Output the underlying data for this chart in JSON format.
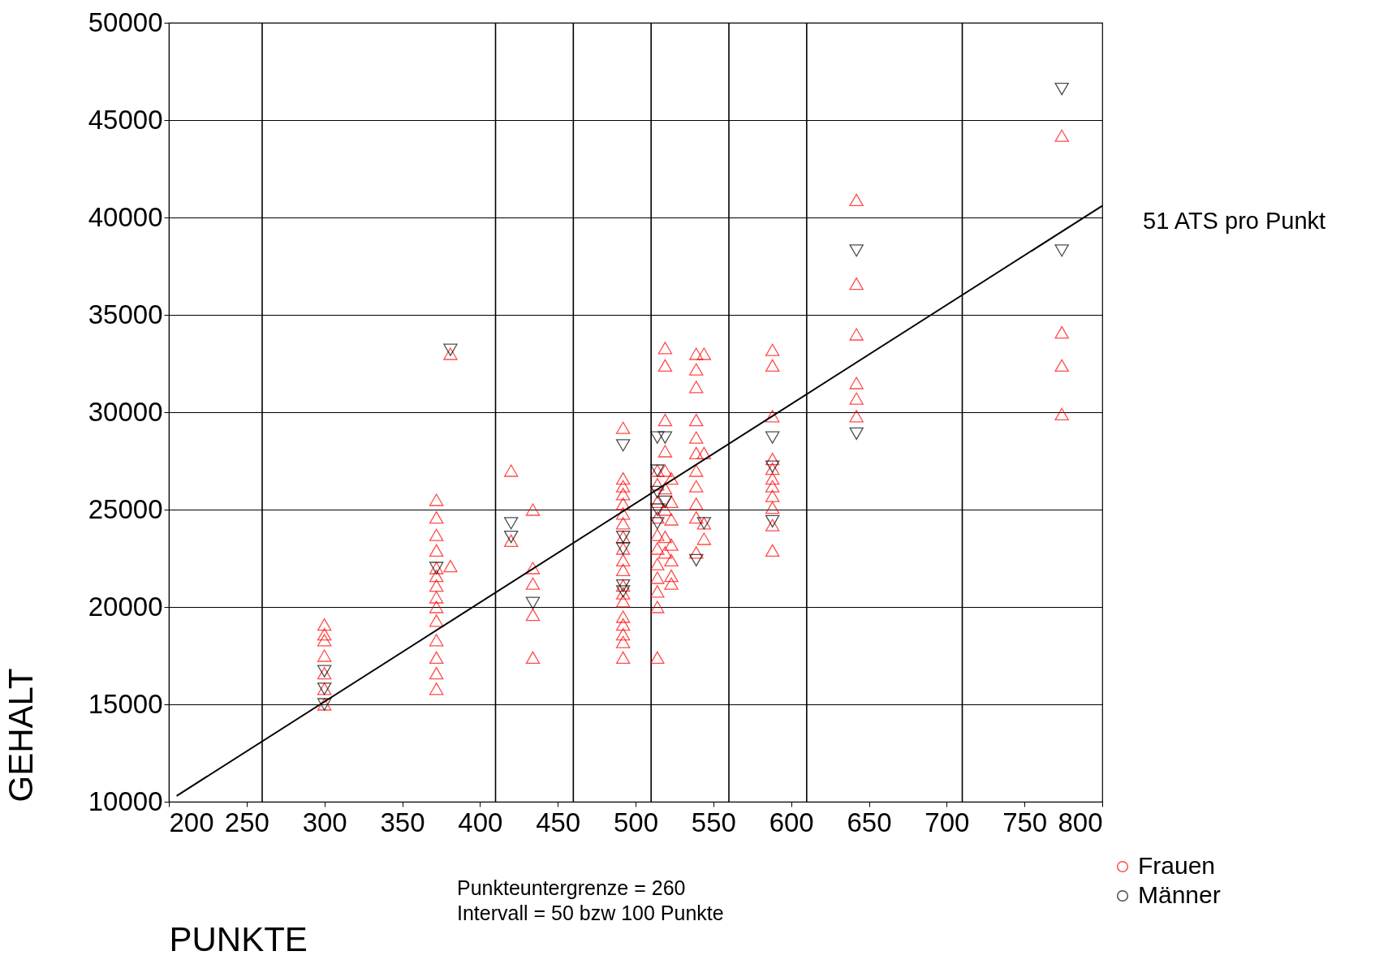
{
  "chart_data": {
    "type": "scatter",
    "xlabel": "PUNKTE",
    "ylabel": "GEHALT",
    "xlim": [
      200,
      800
    ],
    "xticks": [
      200,
      250,
      300,
      350,
      400,
      450,
      500,
      550,
      600,
      650,
      700,
      750,
      800
    ],
    "ylim": [
      10000,
      50000
    ],
    "yticks": [
      10000,
      15000,
      20000,
      25000,
      30000,
      35000,
      40000,
      45000,
      50000
    ],
    "grid": "y",
    "legend": "bottom right",
    "series": [
      {
        "name": "Frauen",
        "color": "#ff0000",
        "marker": "triangle",
        "x": [
          300,
          300,
          300,
          300,
          300,
          300,
          300,
          372,
          372,
          372,
          372,
          372,
          372,
          372,
          372,
          372,
          372,
          372,
          372,
          372,
          372,
          381,
          381,
          420,
          420,
          434,
          434,
          434,
          434,
          434,
          492,
          492,
          492,
          492,
          492,
          492,
          492,
          492,
          492,
          492,
          492,
          492,
          492,
          492,
          492,
          492,
          492,
          492,
          492,
          514,
          514,
          514,
          514,
          514,
          514,
          514,
          514,
          514,
          514,
          514,
          519,
          519,
          519,
          519,
          519,
          519,
          519,
          519,
          519,
          523,
          523,
          523,
          523,
          523,
          523,
          523,
          539,
          539,
          539,
          539,
          539,
          539,
          539,
          539,
          539,
          539,
          539,
          544,
          544,
          544,
          544,
          588,
          588,
          588,
          588,
          588,
          588,
          588,
          588,
          588,
          588,
          588,
          642,
          642,
          642,
          642,
          642,
          642,
          774,
          774,
          774,
          774
        ],
        "values": [
          19100,
          18600,
          18300,
          17500,
          16600,
          15800,
          15000,
          25500,
          24600,
          23700,
          22900,
          22000,
          21600,
          21100,
          20500,
          20000,
          19300,
          18300,
          17400,
          16600,
          15800,
          33000,
          22100,
          27000,
          23400,
          25000,
          22000,
          21200,
          19600,
          17400,
          29200,
          26600,
          26200,
          25800,
          25300,
          24800,
          24300,
          23600,
          23000,
          22400,
          21900,
          21100,
          20700,
          20300,
          19500,
          19100,
          18600,
          18200,
          17400,
          27000,
          26300,
          25400,
          24600,
          23700,
          23000,
          22200,
          21500,
          20800,
          20000,
          17400,
          33300,
          32400,
          29600,
          28000,
          27000,
          26100,
          25000,
          23600,
          22800,
          26600,
          25400,
          24500,
          23200,
          22400,
          21600,
          21200,
          33000,
          32200,
          31300,
          29600,
          28700,
          27900,
          27000,
          26200,
          25300,
          24600,
          22800,
          33000,
          27900,
          24300,
          23500,
          33200,
          32400,
          29800,
          27600,
          27100,
          26600,
          26200,
          25700,
          25100,
          24200,
          22900,
          40900,
          36600,
          34000,
          31500,
          30700,
          29800,
          44200,
          34100,
          32400,
          29900
        ]
      },
      {
        "name": "Männer",
        "color": "#000000",
        "marker": "triangle-down",
        "x": [
          300,
          300,
          300,
          372,
          381,
          420,
          420,
          434,
          492,
          492,
          492,
          492,
          492,
          514,
          514,
          514,
          514,
          514,
          519,
          519,
          539,
          544,
          588,
          588,
          588,
          642,
          642,
          774,
          774
        ],
        "values": [
          16700,
          15800,
          15000,
          22000,
          33200,
          24300,
          23600,
          20200,
          28300,
          23600,
          23000,
          21100,
          20800,
          28700,
          27000,
          25900,
          25000,
          24300,
          28700,
          25400,
          22400,
          24300,
          28700,
          27200,
          24400,
          38300,
          28900,
          46600,
          38300
        ]
      },
      {
        "type": "line",
        "color": "#000000",
        "x": [
          205,
          800
        ],
        "values": [
          10300,
          40600
        ]
      }
    ],
    "ref_lines": [
      {
        "axis": "x",
        "value": 260
      },
      {
        "axis": "x",
        "value": 410
      },
      {
        "axis": "x",
        "value": 460
      },
      {
        "axis": "x",
        "value": 510
      },
      {
        "axis": "x",
        "value": 560
      },
      {
        "axis": "x",
        "value": 610
      },
      {
        "axis": "x",
        "value": 710
      }
    ],
    "annotations": [
      "51 ATS pro Punkt",
      "Punkteuntergrenze = 260",
      "Intervall = 50 bzw 100 Punkte"
    ]
  }
}
